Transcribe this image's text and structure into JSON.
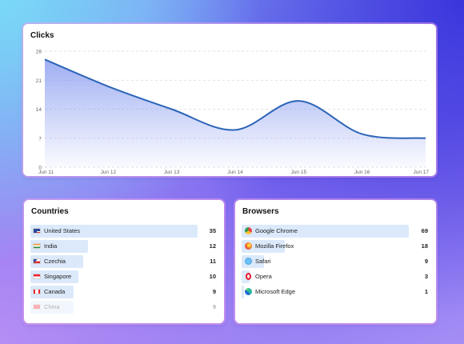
{
  "clicks": {
    "title": "Clicks",
    "chart_data": {
      "type": "area",
      "categories": [
        "Jun 11",
        "Jun 12",
        "Jun 13",
        "Jun 14",
        "Jun 15",
        "Jun 16",
        "Jun 17"
      ],
      "series": [
        {
          "values": [
            26,
            19.5,
            14,
            9,
            16,
            8,
            7
          ]
        }
      ],
      "yticks": [
        0,
        7,
        14,
        21,
        28
      ],
      "ylim": [
        0,
        28
      ],
      "grid": true,
      "line_color": "#2c64b8",
      "fill_color": "#7f94ee"
    }
  },
  "countries": {
    "title": "Countries",
    "items": [
      {
        "label": "United States",
        "count": "35",
        "flag": "us-flag-icon"
      },
      {
        "label": "India",
        "count": "12",
        "flag": "india-flag-icon"
      },
      {
        "label": "Czechia",
        "count": "11",
        "flag": "czechia-flag-icon"
      },
      {
        "label": "Singapore",
        "count": "10",
        "flag": "singapore-flag-icon"
      },
      {
        "label": "Canada",
        "count": "9",
        "flag": "canada-flag-icon"
      },
      {
        "label": "China",
        "count": "9",
        "flag": "china-flag-icon"
      }
    ]
  },
  "browsers": {
    "title": "Browsers",
    "items": [
      {
        "label": "Google Chrome",
        "count": "69",
        "icon": "chrome-icon"
      },
      {
        "label": "Mozilla Firefox",
        "count": "18",
        "icon": "firefox-icon"
      },
      {
        "label": "Safari",
        "count": "9",
        "icon": "safari-icon"
      },
      {
        "label": "Opera",
        "count": "3",
        "icon": "opera-icon"
      },
      {
        "label": "Microsoft Edge",
        "count": "1",
        "icon": "edge-icon"
      }
    ]
  },
  "colors": {
    "bar": "#dbe9fb",
    "accent": "#2c64b8"
  }
}
